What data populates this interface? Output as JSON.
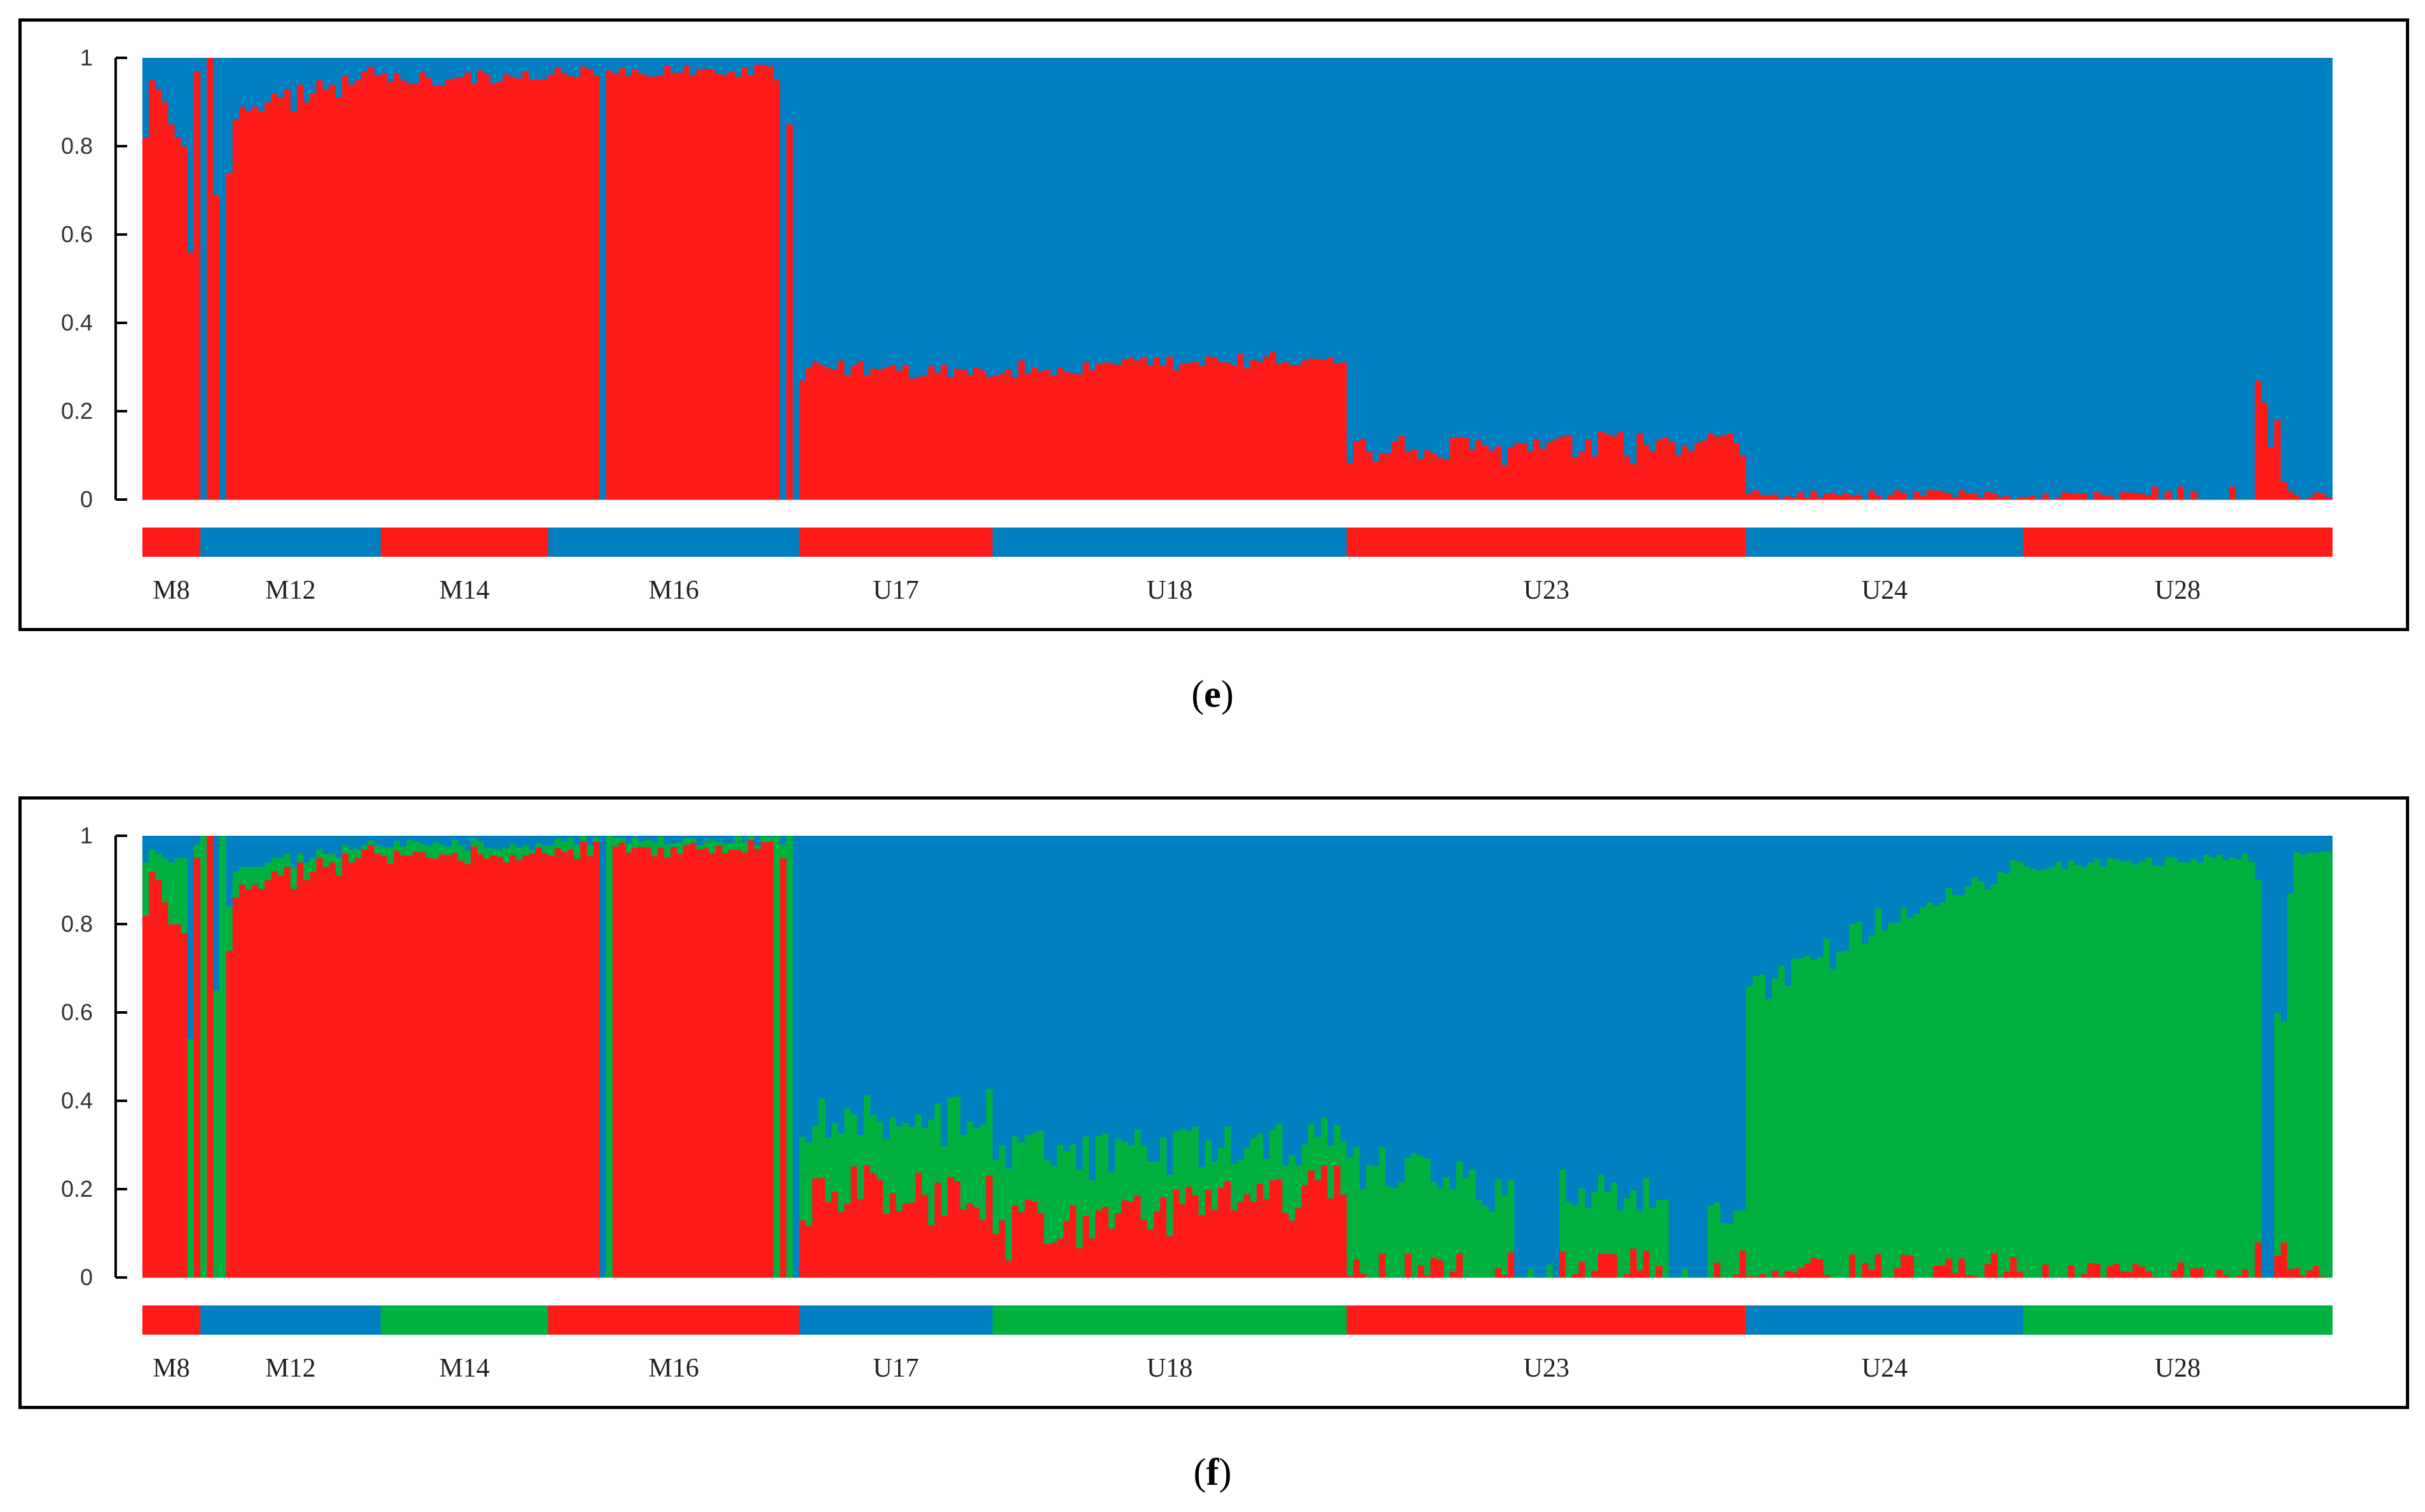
{
  "colors": {
    "red": "#ff1a1a",
    "blue": "#0080c0",
    "green": "#00b140"
  },
  "panels": [
    {
      "label_open": "(",
      "label_letter": "e",
      "label_close": ")"
    },
    {
      "label_open": "(",
      "label_letter": "f",
      "label_close": ")"
    }
  ],
  "chart_data": [
    {
      "type": "bar",
      "stacked": true,
      "ylim": [
        0,
        1
      ],
      "y_ticks": [
        "0",
        "0.2",
        "0.4",
        "0.6",
        "0.8",
        "1"
      ],
      "grid": false,
      "legend": "none",
      "series_names": [
        "red",
        "blue"
      ],
      "populations": [
        {
          "name": "M8",
          "n": 9,
          "bar_color": "red",
          "segments": [
            [
              0.82,
              0.95,
              0.93,
              0.9,
              0.85,
              0.82,
              0.8,
              0.56,
              0.97
            ],
            [
              0.18,
              0.05,
              0.07,
              0.1,
              0.15,
              0.18,
              0.2,
              0.44,
              0.03
            ]
          ],
          "profile": null
        },
        {
          "name": "M12",
          "n": 28,
          "bar_color": "blue",
          "segments": [
            [
              0.0,
              1.0,
              0.69,
              0.0,
              0.74,
              0.86,
              0.89,
              0.88,
              0.89,
              0.88,
              0.9,
              0.92,
              0.91,
              0.93,
              0.88,
              0.94,
              0.9,
              0.92,
              0.95,
              0.93,
              0.94,
              0.91,
              0.96,
              0.94,
              0.95,
              0.97,
              0.98,
              0.96
            ],
            [
              1.0,
              0.0,
              0.31,
              1.0,
              0.26,
              0.14,
              0.11,
              0.12,
              0.11,
              0.12,
              0.1,
              0.08,
              0.09,
              0.07,
              0.12,
              0.06,
              0.1,
              0.08,
              0.05,
              0.07,
              0.06,
              0.09,
              0.04,
              0.06,
              0.05,
              0.03,
              0.02,
              0.04
            ]
          ],
          "profile": null
        },
        {
          "name": "M14",
          "n": 26,
          "bar_color": "red",
          "segments": null,
          "profile": {
            "start": [
              0.95,
              0.05
            ],
            "end": [
              0.96,
              0.04
            ],
            "jitter": 0.035
          }
        },
        {
          "name": "M16",
          "n": 39,
          "bar_color": "blue",
          "segments": null,
          "profile": {
            "start": [
              0.97,
              0.03
            ],
            "end": [
              0.97,
              0.03
            ],
            "jitter": 0.03
          },
          "overrides": [
            {
              "i": 8,
              "values": [
                0.0,
                1.0
              ]
            },
            {
              "i": 35,
              "values": [
                0.95,
                0.05
              ]
            },
            {
              "i": 36,
              "values": [
                0.0,
                1.0
              ]
            },
            {
              "i": 37,
              "values": [
                0.85,
                0.15
              ]
            },
            {
              "i": 38,
              "values": [
                0.0,
                1.0
              ]
            }
          ]
        },
        {
          "name": "U17",
          "n": 30,
          "bar_color": "red",
          "segments": null,
          "profile": {
            "start": [
              0.3,
              0.7
            ],
            "end": [
              0.29,
              0.71
            ],
            "jitter": 0.025
          },
          "overrides": [
            {
              "i": 0,
              "values": [
                0.27,
                0.73
              ]
            }
          ]
        },
        {
          "name": "U18",
          "n": 55,
          "bar_color": "blue",
          "segments": null,
          "profile": {
            "start": [
              0.29,
              0.71
            ],
            "end": [
              0.32,
              0.68
            ],
            "jitter": 0.025
          }
        },
        {
          "name": "U23",
          "n": 62,
          "bar_color": "red",
          "segments": null,
          "profile": {
            "start": [
              0.11,
              0.89
            ],
            "end": [
              0.12,
              0.88
            ],
            "jitter": 0.04
          }
        },
        {
          "name": "U24",
          "n": 43,
          "bar_color": "blue",
          "segments": null,
          "profile": {
            "start": [
              0.01,
              0.99
            ],
            "end": [
              0.01,
              0.99
            ],
            "jitter": 0.012
          }
        },
        {
          "name": "U28",
          "n": 48,
          "bar_color": "red",
          "segments": null,
          "profile": {
            "start": [
              0.01,
              0.99
            ],
            "end": [
              0.01,
              0.99
            ],
            "jitter": 0.01
          },
          "overrides": [
            {
              "i": 20,
              "values": [
                0.03,
                0.97
              ]
            },
            {
              "i": 21,
              "values": [
                0.0,
                1.0
              ]
            },
            {
              "i": 22,
              "values": [
                0.02,
                0.98
              ]
            },
            {
              "i": 23,
              "values": [
                0.0,
                1.0
              ]
            },
            {
              "i": 24,
              "values": [
                0.03,
                0.97
              ]
            },
            {
              "i": 25,
              "values": [
                0.0,
                1.0
              ]
            },
            {
              "i": 26,
              "values": [
                0.02,
                0.98
              ]
            },
            {
              "i": 27,
              "values": [
                0.0,
                1.0
              ]
            },
            {
              "i": 28,
              "values": [
                0.0,
                1.0
              ]
            },
            {
              "i": 29,
              "values": [
                0.0,
                1.0
              ]
            },
            {
              "i": 30,
              "values": [
                0.0,
                1.0
              ]
            },
            {
              "i": 31,
              "values": [
                0.0,
                1.0
              ]
            },
            {
              "i": 32,
              "values": [
                0.03,
                0.97
              ]
            },
            {
              "i": 33,
              "values": [
                0.0,
                1.0
              ]
            },
            {
              "i": 34,
              "values": [
                0.0,
                1.0
              ]
            },
            {
              "i": 35,
              "values": [
                0.0,
                1.0
              ]
            },
            {
              "i": 36,
              "values": [
                0.27,
                0.73
              ]
            },
            {
              "i": 37,
              "values": [
                0.22,
                0.78
              ]
            },
            {
              "i": 38,
              "values": [
                0.12,
                0.88
              ]
            },
            {
              "i": 39,
              "values": [
                0.18,
                0.82
              ]
            },
            {
              "i": 40,
              "values": [
                0.04,
                0.96
              ]
            },
            {
              "i": 41,
              "values": [
                0.02,
                0.98
              ]
            },
            {
              "i": 42,
              "values": [
                0.01,
                0.99
              ]
            },
            {
              "i": 43,
              "values": [
                0.0,
                1.0
              ]
            }
          ]
        }
      ]
    },
    {
      "type": "bar",
      "stacked": true,
      "ylim": [
        0,
        1
      ],
      "y_ticks": [
        "0",
        "0.2",
        "0.4",
        "0.6",
        "0.8",
        "1"
      ],
      "grid": false,
      "legend": "none",
      "series_names": [
        "red",
        "green",
        "blue"
      ],
      "populations": [
        {
          "name": "M8",
          "n": 9,
          "bar_color": "red",
          "segments": [
            [
              0.82,
              0.92,
              0.9,
              0.85,
              0.8,
              0.8,
              0.78,
              0.0,
              0.95
            ],
            [
              0.12,
              0.05,
              0.06,
              0.1,
              0.14,
              0.15,
              0.17,
              0.54,
              0.03
            ],
            [
              0.06,
              0.03,
              0.04,
              0.05,
              0.06,
              0.05,
              0.05,
              0.46,
              0.02
            ]
          ],
          "profile": null
        },
        {
          "name": "M12",
          "n": 28,
          "bar_color": "blue",
          "segments": [
            [
              0.0,
              1.0,
              0.0,
              0.0,
              0.74,
              0.86,
              0.89,
              0.88,
              0.89,
              0.88,
              0.9,
              0.92,
              0.91,
              0.93,
              0.88,
              0.94,
              0.9,
              0.92,
              0.95,
              0.93,
              0.94,
              0.91,
              0.96,
              0.94,
              0.95,
              0.97,
              0.98,
              0.96
            ],
            [
              1.0,
              0.0,
              0.65,
              1.0,
              0.1,
              0.06,
              0.04,
              0.05,
              0.04,
              0.05,
              0.04,
              0.03,
              0.04,
              0.03,
              0.05,
              0.02,
              0.04,
              0.03,
              0.02,
              0.03,
              0.02,
              0.04,
              0.02,
              0.03,
              0.02,
              0.01,
              0.01,
              0.02
            ],
            [
              0.0,
              0.0,
              0.35,
              0.0,
              0.16,
              0.08,
              0.07,
              0.07,
              0.07,
              0.07,
              0.06,
              0.05,
              0.05,
              0.04,
              0.07,
              0.04,
              0.06,
              0.05,
              0.03,
              0.04,
              0.04,
              0.05,
              0.02,
              0.03,
              0.03,
              0.02,
              0.01,
              0.02
            ]
          ],
          "profile": null
        },
        {
          "name": "M14",
          "n": 26,
          "bar_color": "green",
          "segments": null,
          "profile": {
            "start": [
              0.95,
              0.03,
              0.02
            ],
            "end": [
              0.96,
              0.02,
              0.02
            ],
            "jitter": 0.03
          }
        },
        {
          "name": "M16",
          "n": 39,
          "bar_color": "red",
          "segments": null,
          "profile": {
            "start": [
              0.97,
              0.02,
              0.01
            ],
            "end": [
              0.97,
              0.02,
              0.01
            ],
            "jitter": 0.025
          },
          "overrides": [
            {
              "i": 8,
              "values": [
                0.0,
                0.0,
                1.0
              ]
            },
            {
              "i": 9,
              "values": [
                0.0,
                1.0,
                0.0
              ]
            },
            {
              "i": 35,
              "values": [
                0.0,
                1.0,
                0.0
              ]
            },
            {
              "i": 36,
              "values": [
                0.95,
                0.03,
                0.02
              ]
            },
            {
              "i": 37,
              "values": [
                0.0,
                1.0,
                0.0
              ]
            },
            {
              "i": 38,
              "values": [
                0.0,
                0.0,
                1.0
              ]
            }
          ]
        },
        {
          "name": "U17",
          "n": 30,
          "bar_color": "blue",
          "segments": null,
          "profile": {
            "start": [
              0.2,
              0.15,
              0.65
            ],
            "end": [
              0.18,
              0.18,
              0.64
            ],
            "jitter": 0.09
          }
        },
        {
          "name": "U18",
          "n": 55,
          "bar_color": "green",
          "segments": null,
          "profile": {
            "start": [
              0.1,
              0.18,
              0.72
            ],
            "end": [
              0.2,
              0.1,
              0.7
            ],
            "jitter": 0.07
          }
        },
        {
          "name": "U23",
          "n": 62,
          "bar_color": "red",
          "segments": null,
          "profile": {
            "start": [
              0.01,
              0.25,
              0.74
            ],
            "end": [
              0.0,
              0.12,
              0.88
            ],
            "jitter": 0.07
          },
          "overrides": [
            {
              "i": 26,
              "values": [
                0.0,
                0.0,
                1.0
              ]
            },
            {
              "i": 27,
              "values": [
                0.0,
                0.0,
                1.0
              ]
            },
            {
              "i": 28,
              "values": [
                0.0,
                0.02,
                0.98
              ]
            },
            {
              "i": 29,
              "values": [
                0.0,
                0.0,
                1.0
              ]
            },
            {
              "i": 30,
              "values": [
                0.0,
                0.0,
                1.0
              ]
            },
            {
              "i": 31,
              "values": [
                0.0,
                0.03,
                0.97
              ]
            },
            {
              "i": 32,
              "values": [
                0.0,
                0.0,
                1.0
              ]
            },
            {
              "i": 50,
              "values": [
                0.0,
                0.0,
                1.0
              ]
            },
            {
              "i": 51,
              "values": [
                0.0,
                0.0,
                1.0
              ]
            },
            {
              "i": 52,
              "values": [
                0.0,
                0.02,
                0.98
              ]
            },
            {
              "i": 53,
              "values": [
                0.0,
                0.0,
                1.0
              ]
            },
            {
              "i": 54,
              "values": [
                0.0,
                0.0,
                1.0
              ]
            },
            {
              "i": 55,
              "values": [
                0.0,
                0.0,
                1.0
              ]
            }
          ]
        },
        {
          "name": "U24",
          "n": 43,
          "bar_color": "blue",
          "segments": null,
          "profile": {
            "start": [
              0.0,
              0.66,
              0.34
            ],
            "end": [
              0.01,
              0.92,
              0.07
            ],
            "jitter": 0.05
          }
        },
        {
          "name": "U28",
          "n": 48,
          "bar_color": "green",
          "segments": null,
          "profile": {
            "start": [
              0.01,
              0.92,
              0.07
            ],
            "end": [
              0.01,
              0.95,
              0.04
            ],
            "jitter": 0.025
          },
          "overrides": [
            {
              "i": 36,
              "values": [
                0.08,
                0.82,
                0.1
              ]
            },
            {
              "i": 37,
              "values": [
                0.0,
                0.0,
                1.0
              ]
            },
            {
              "i": 38,
              "values": [
                0.0,
                0.0,
                1.0
              ]
            },
            {
              "i": 39,
              "values": [
                0.05,
                0.55,
                0.4
              ]
            },
            {
              "i": 40,
              "values": [
                0.08,
                0.5,
                0.42
              ]
            },
            {
              "i": 41,
              "values": [
                0.02,
                0.85,
                0.13
              ]
            }
          ]
        }
      ]
    }
  ]
}
